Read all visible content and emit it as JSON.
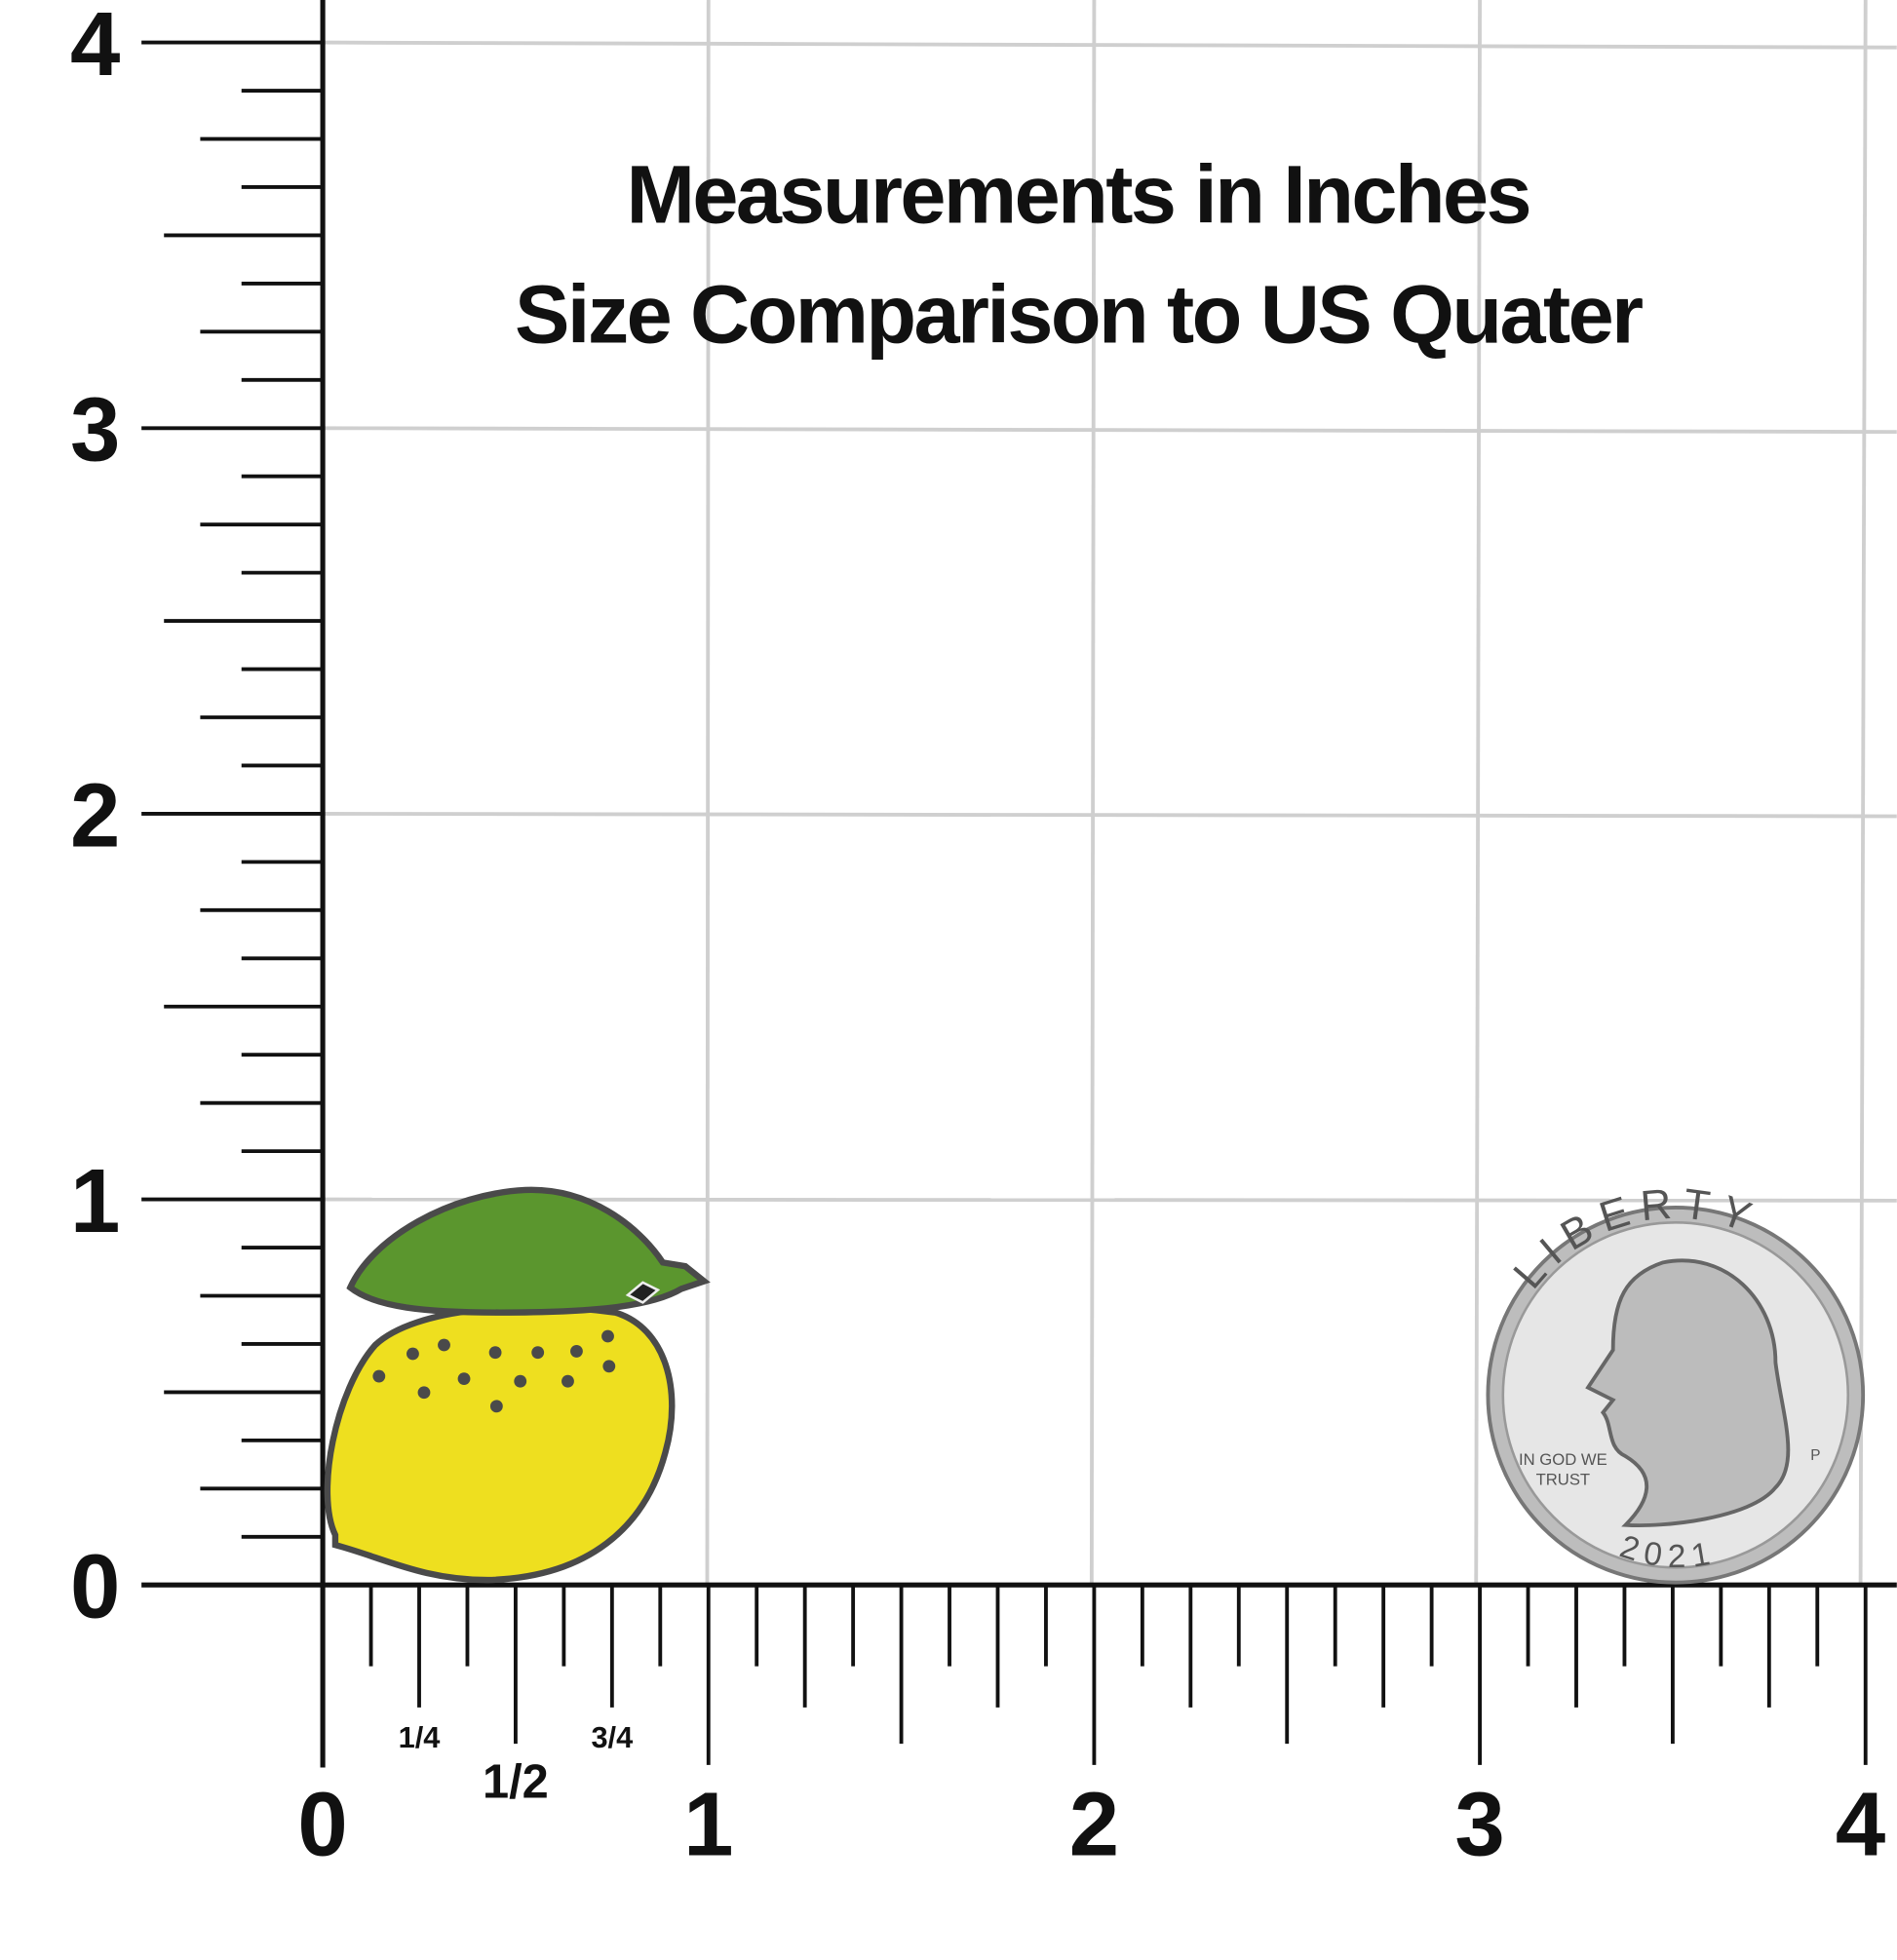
{
  "title": [
    "Measurements in Inches",
    "Size Comparison to US Quater"
  ],
  "y_axis": {
    "ticks": [
      0,
      1,
      2,
      3,
      4
    ]
  },
  "x_axis": {
    "ticks": [
      0,
      1,
      2,
      3,
      4
    ],
    "fractions": [
      {
        "value": 0.25,
        "label": "1/4"
      },
      {
        "value": 0.5,
        "label": "1/2"
      },
      {
        "value": 0.75,
        "label": "3/4"
      }
    ]
  },
  "quarter": {
    "legend": "LIBERTY",
    "motto": [
      "IN GOD WE",
      "TRUST"
    ],
    "year": "2021",
    "mint_mark": "P"
  }
}
